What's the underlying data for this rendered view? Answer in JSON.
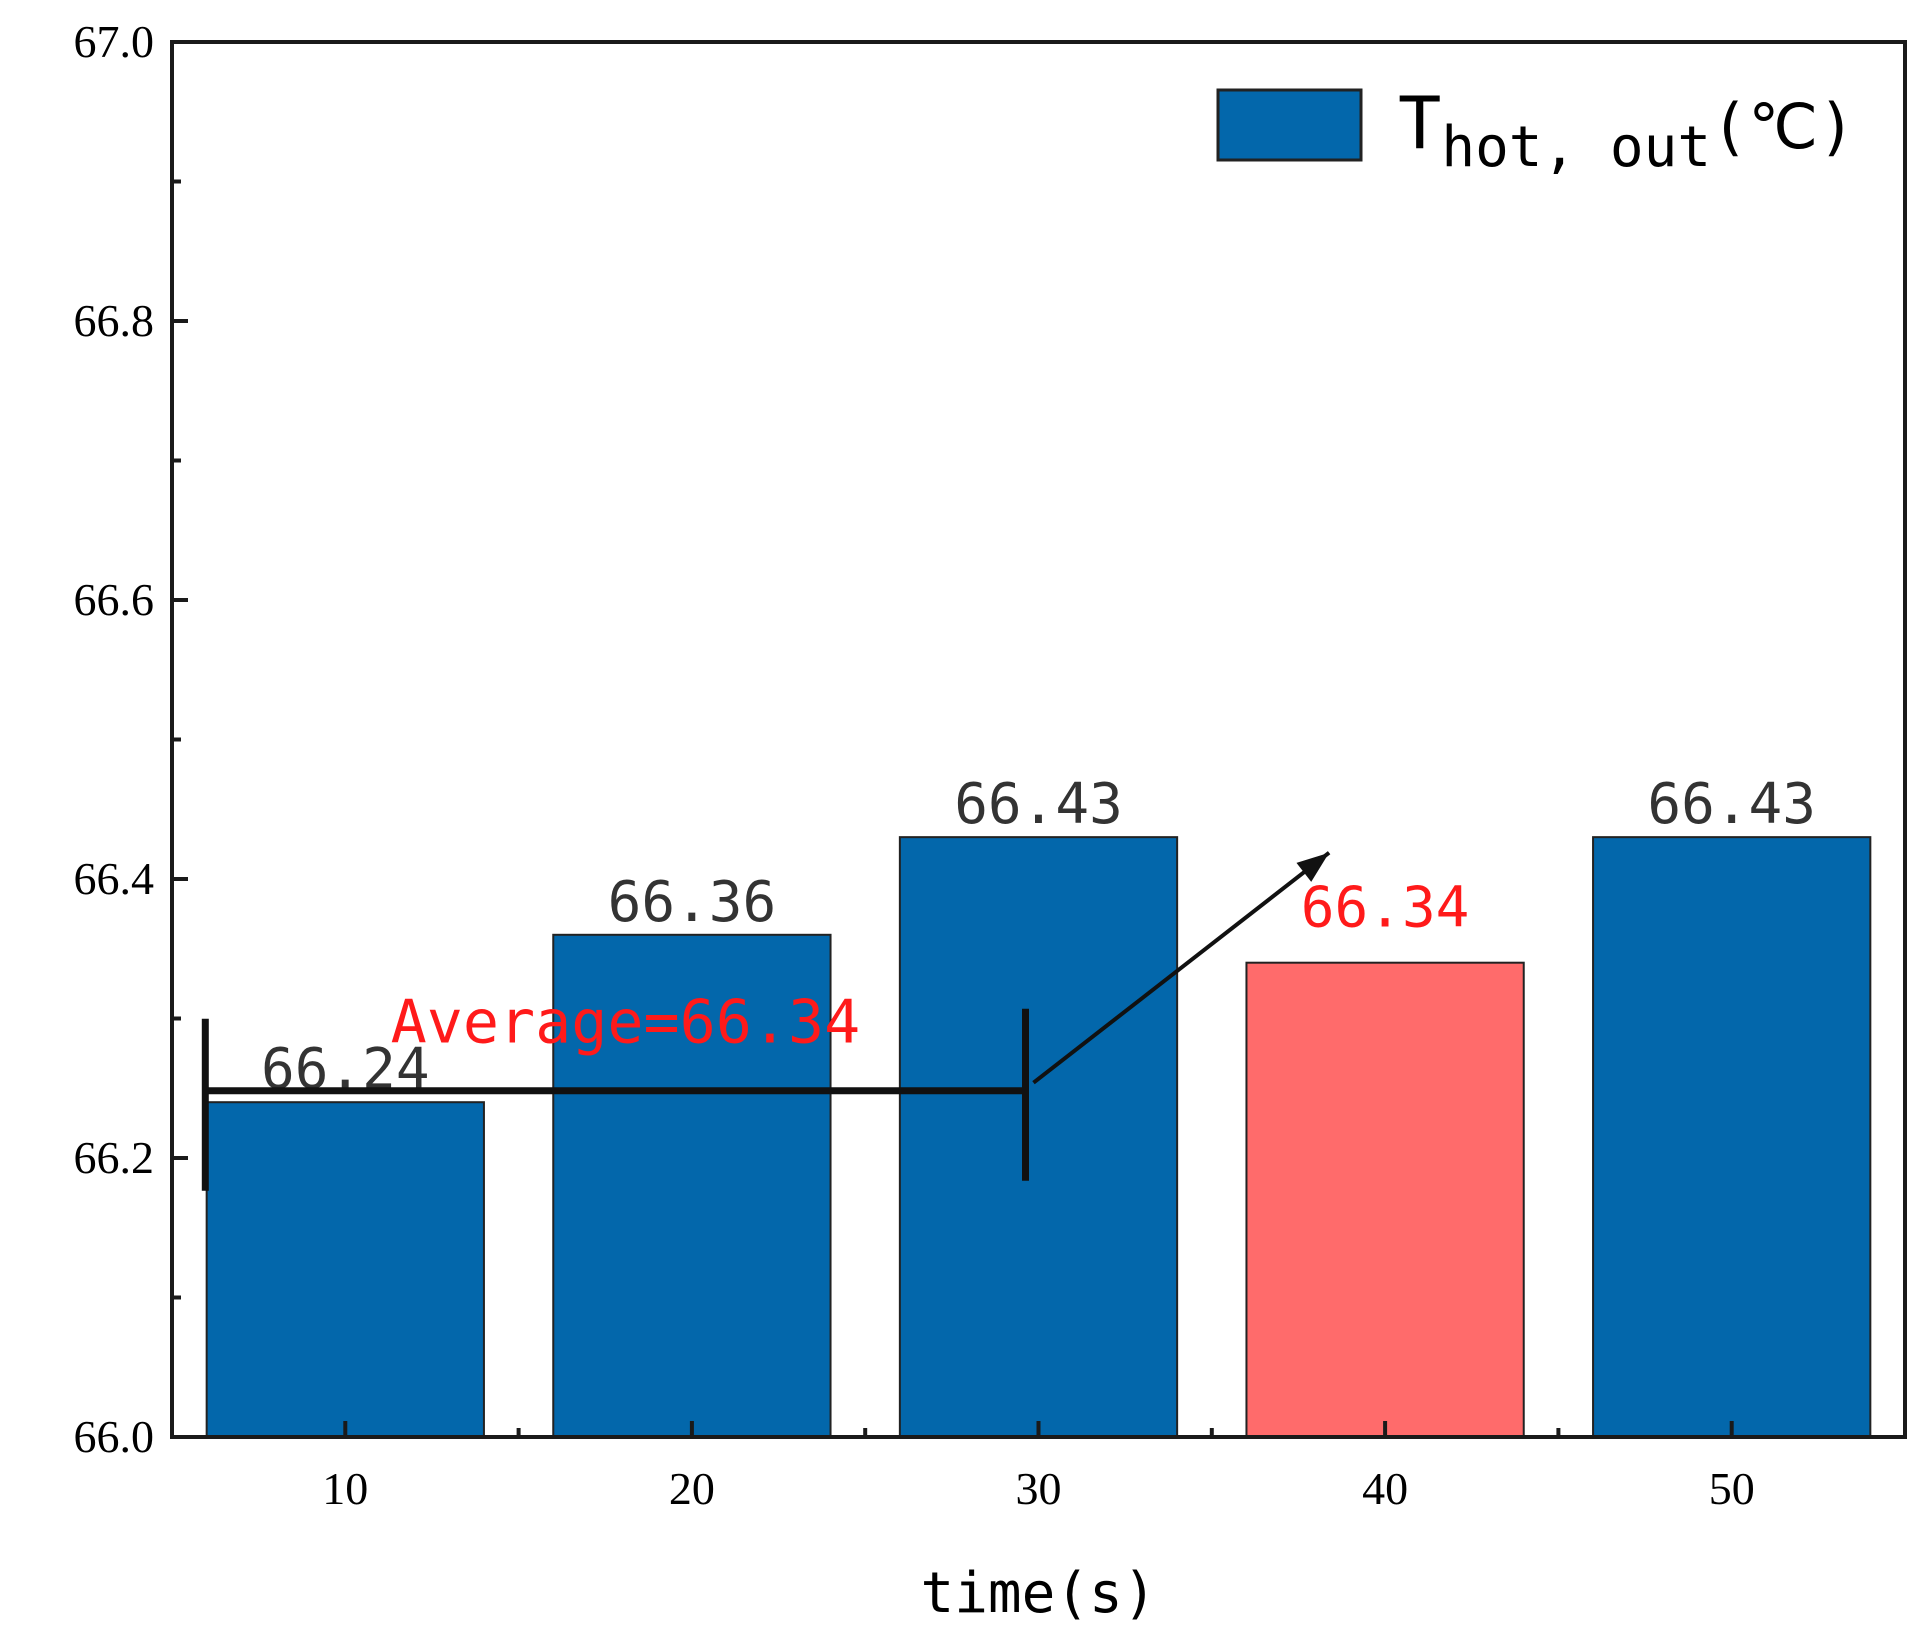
{
  "chart_data": {
    "type": "bar",
    "title": "",
    "xlabel": "time(s)",
    "ylabel": "",
    "categories": [
      "10",
      "20",
      "30",
      "40",
      "50"
    ],
    "values": [
      66.24,
      66.36,
      66.43,
      66.34,
      66.43
    ],
    "value_labels": [
      "66.24",
      "66.36",
      "66.43",
      "66.34",
      "66.43"
    ],
    "highlight_index": 3,
    "ylim": [
      66.0,
      67.0
    ],
    "yticks": [
      "66.0",
      "66.2",
      "66.4",
      "66.6",
      "66.8",
      "67.0"
    ],
    "ytick_values": [
      66.0,
      66.2,
      66.4,
      66.6,
      66.8,
      67.0
    ],
    "legend": {
      "position": "top-right",
      "entries": [
        {
          "symbol": "T",
          "subscript": "hot, out",
          "suffix": "(℃)"
        }
      ]
    },
    "annotation": {
      "text": "Average=66.34",
      "span_start": "10",
      "span_end": "30",
      "target": "40"
    },
    "colors": {
      "bar": "#0367ab",
      "highlight_bar": "#ff6b6b",
      "highlight_text": "#ff1a1a",
      "label_text": "#333333",
      "axis": "#1a1a1a"
    }
  }
}
